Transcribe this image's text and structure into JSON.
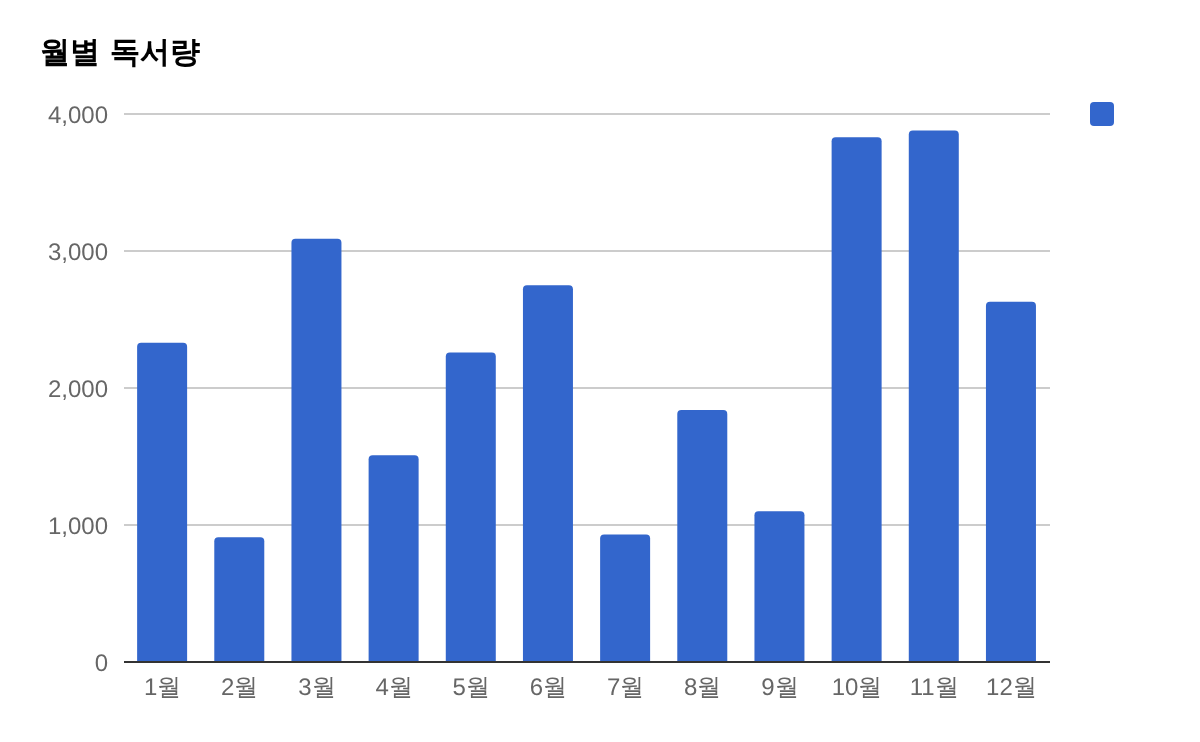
{
  "chart_data": {
    "type": "bar",
    "title": "월별 독서량",
    "categories": [
      "1월",
      "2월",
      "3월",
      "4월",
      "5월",
      "6월",
      "7월",
      "8월",
      "9월",
      "10월",
      "11월",
      "12월"
    ],
    "series": [
      {
        "color": "#3366cc",
        "values": [
          2330,
          910,
          3090,
          1510,
          2260,
          2750,
          930,
          1840,
          1100,
          3830,
          3880,
          2630
        ]
      }
    ],
    "ylim": [
      0,
      4000
    ],
    "yticks": [
      {
        "value": 0,
        "label": "0"
      },
      {
        "value": 1000,
        "label": "1,000"
      },
      {
        "value": 2000,
        "label": "2,000"
      },
      {
        "value": 3000,
        "label": "3,000"
      },
      {
        "value": 4000,
        "label": "4,000"
      }
    ],
    "grid": "y"
  }
}
